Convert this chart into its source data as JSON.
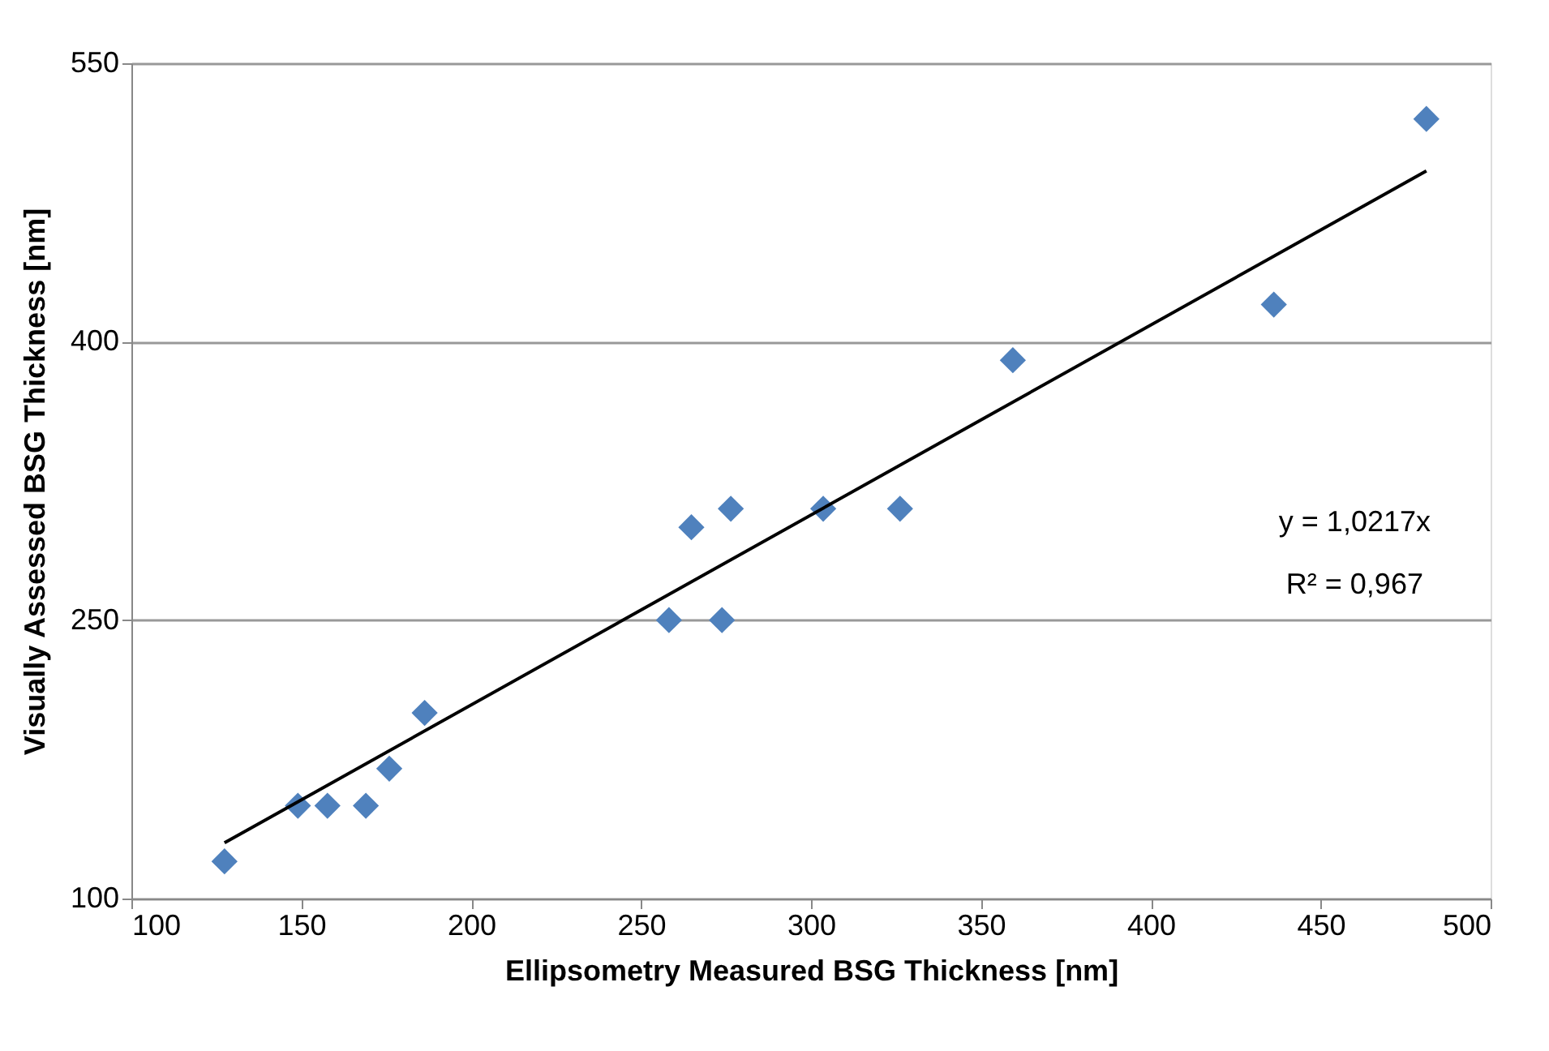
{
  "chart_data": {
    "type": "scatter",
    "xlabel": "Ellipsometry Measured BSG Thickness [nm]",
    "ylabel": "Visually Assessed BSG Thickness [nm]",
    "xlim": [
      100,
      500
    ],
    "xticks": [
      100,
      150,
      200,
      250,
      300,
      350,
      400,
      450,
      500
    ],
    "ylim": [
      100,
      550
    ],
    "yticks": [
      100,
      250,
      400,
      550
    ],
    "grid": "y",
    "marker": "diamond",
    "series": [
      {
        "color": "#4f81bd",
        "x": [
          127.4,
          149,
          157.7,
          169,
          175.9,
          186.3,
          258.2,
          264.8,
          273.8,
          276.4,
          303.6,
          326.2,
          359.4,
          436.2,
          481.1
        ],
        "values": [
          120,
          150,
          150,
          150,
          170,
          200,
          250,
          300,
          250,
          310,
          310,
          310,
          390,
          420,
          520
        ]
      },
      {
        "type": "line",
        "color": "#000000",
        "line_style": "solid",
        "marker": "none",
        "x": [
          127.4,
          481.1
        ],
        "values": [
          130,
          492
        ]
      }
    ],
    "annotations": [
      "y = 1,0217x",
      "R² = 0,967"
    ]
  }
}
